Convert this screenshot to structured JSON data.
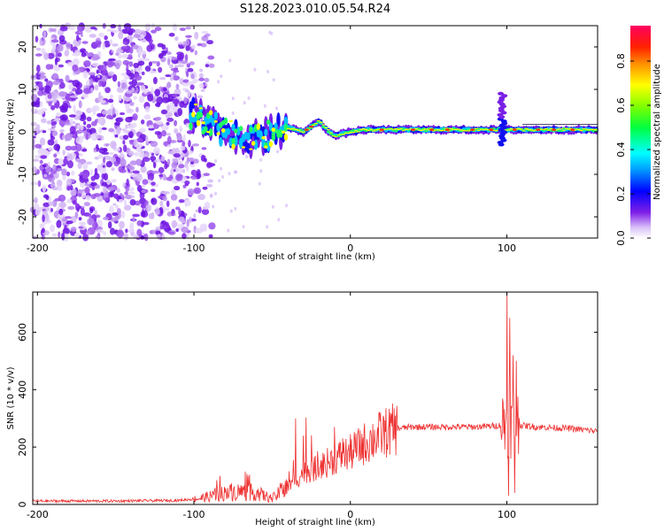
{
  "figure": {
    "title": "S128.2023.010.05.54.R24"
  },
  "chart_data": [
    {
      "type": "heatmap",
      "xlabel": "Height of straight line (km)",
      "ylabel": "Frequency (Hz)",
      "xlim": [
        -203,
        158
      ],
      "ylim": [
        -25,
        25
      ],
      "xticks": [
        -200,
        -100,
        0,
        100
      ],
      "yticks": [
        -20,
        -10,
        0,
        10,
        20
      ],
      "colorbar": {
        "label": "Normalized spectral amplitude",
        "range": [
          0,
          0.96
        ],
        "ticks": [
          0.0,
          0.2,
          0.4,
          0.6,
          0.8
        ],
        "colormap": [
          "#ffffff",
          "#e8d8f8",
          "#b070f0",
          "#8020e8",
          "#4010e0",
          "#0000ff",
          "#00a0ff",
          "#00ffff",
          "#00ff60",
          "#20ff00",
          "#c0ff00",
          "#ffff00",
          "#ffa000",
          "#ff4000",
          "#ff0040",
          "#ff0080"
        ]
      },
      "features": {
        "noise_region_x": [
          -203,
          -100
        ],
        "signal_track": [
          [
            -100,
            4
          ],
          [
            -90,
            2
          ],
          [
            -80,
            0
          ],
          [
            -70,
            -1
          ],
          [
            -60,
            -1.5
          ],
          [
            -50,
            0
          ],
          [
            -40,
            1
          ],
          [
            -30,
            0
          ],
          [
            -20,
            2.5
          ],
          [
            -15,
            0.5
          ],
          [
            -10,
            -1
          ],
          [
            0,
            0
          ],
          [
            10,
            0.5
          ],
          [
            50,
            0.5
          ],
          [
            100,
            0.5
          ],
          [
            158,
            0.5
          ]
        ],
        "spike_x": 97,
        "spike_freq_range": [
          -3,
          9
        ]
      }
    },
    {
      "type": "line",
      "xlabel": "Height of straight line (km)",
      "ylabel": "SNR (10 * v/v)",
      "xlim": [
        -203,
        158
      ],
      "ylim": [
        0,
        740
      ],
      "xticks": [
        -200,
        -100,
        0,
        100
      ],
      "yticks": [
        0,
        200,
        400,
        600
      ],
      "grid": false,
      "series": [
        {
          "color": "#ee3030",
          "envelope": [
            [
              -203,
              12
            ],
            [
              -150,
              12
            ],
            [
              -110,
              14
            ],
            [
              -95,
              22
            ],
            [
              -80,
              40
            ],
            [
              -70,
              45
            ],
            [
              -60,
              40
            ],
            [
              -50,
              20
            ],
            [
              -40,
              60
            ],
            [
              -30,
              110
            ],
            [
              -20,
              130
            ],
            [
              -10,
              160
            ],
            [
              0,
              180
            ],
            [
              10,
              215
            ],
            [
              20,
              245
            ],
            [
              30,
              265
            ],
            [
              40,
              270
            ],
            [
              60,
              270
            ],
            [
              80,
              270
            ],
            [
              95,
              275
            ],
            [
              100,
              290
            ],
            [
              110,
              275
            ],
            [
              120,
              270
            ],
            [
              140,
              265
            ],
            [
              158,
              255
            ]
          ],
          "spikes": [
            [
              -35,
              300
            ],
            [
              -30,
              240
            ],
            [
              -10,
              270
            ],
            [
              -5,
              230
            ],
            [
              100,
              740
            ],
            [
              102,
              650
            ],
            [
              104,
              520
            ],
            [
              106,
              500
            ],
            [
              101,
              30
            ],
            [
              105,
              40
            ]
          ]
        }
      ]
    }
  ]
}
